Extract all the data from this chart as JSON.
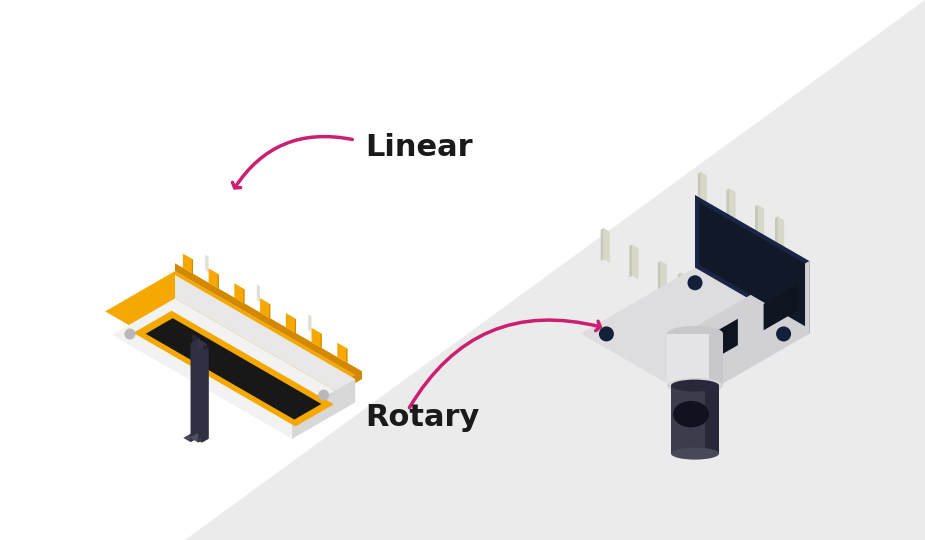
{
  "bg_white": "#ffffff",
  "bg_gray": "#ebebeb",
  "label_linear": "Linear",
  "label_rotary": "Rotary",
  "label_fontsize": 22,
  "label_fontweight": "bold",
  "label_color": "#1a1a1a",
  "arrow_color": "#cc1f72",
  "colors": {
    "body_top": "#f2f2f2",
    "body_front": "#e8e8e8",
    "body_right": "#d8d8d8",
    "orange": "#f5a800",
    "orange_side": "#d48800",
    "slot_orange": "#f5a800",
    "track_black": "#181818",
    "slider_dark": "#2a2a35",
    "slider_mid": "#3a3a48",
    "slider_light": "#484858",
    "col_top1": "#454555",
    "col_top2": "#505060",
    "col_top3": "#3a3a48",
    "col_front1": "#28283a",
    "col_front2": "#35354a",
    "col_front3": "#222230",
    "col_right1": "#303042",
    "dot_gray": "#b8b8b8",
    "navy_top": "#dddde0",
    "navy_front": "#1a2545",
    "navy_right": "#d0d0d5",
    "navy_dark_face": "#111828",
    "navy_detail": "#0e1520",
    "screw_hole": "#12203a",
    "pin_color": "#d8d8c8",
    "cyl_body": "#e5e5e8",
    "cyl_dark": "#c8c8cc",
    "cyl_top": "#d5d5d8",
    "knob_body": "#3c3c4c",
    "knob_dark": "#28283a",
    "knob_top_col": "#484858",
    "knob_refl": "#111120"
  }
}
